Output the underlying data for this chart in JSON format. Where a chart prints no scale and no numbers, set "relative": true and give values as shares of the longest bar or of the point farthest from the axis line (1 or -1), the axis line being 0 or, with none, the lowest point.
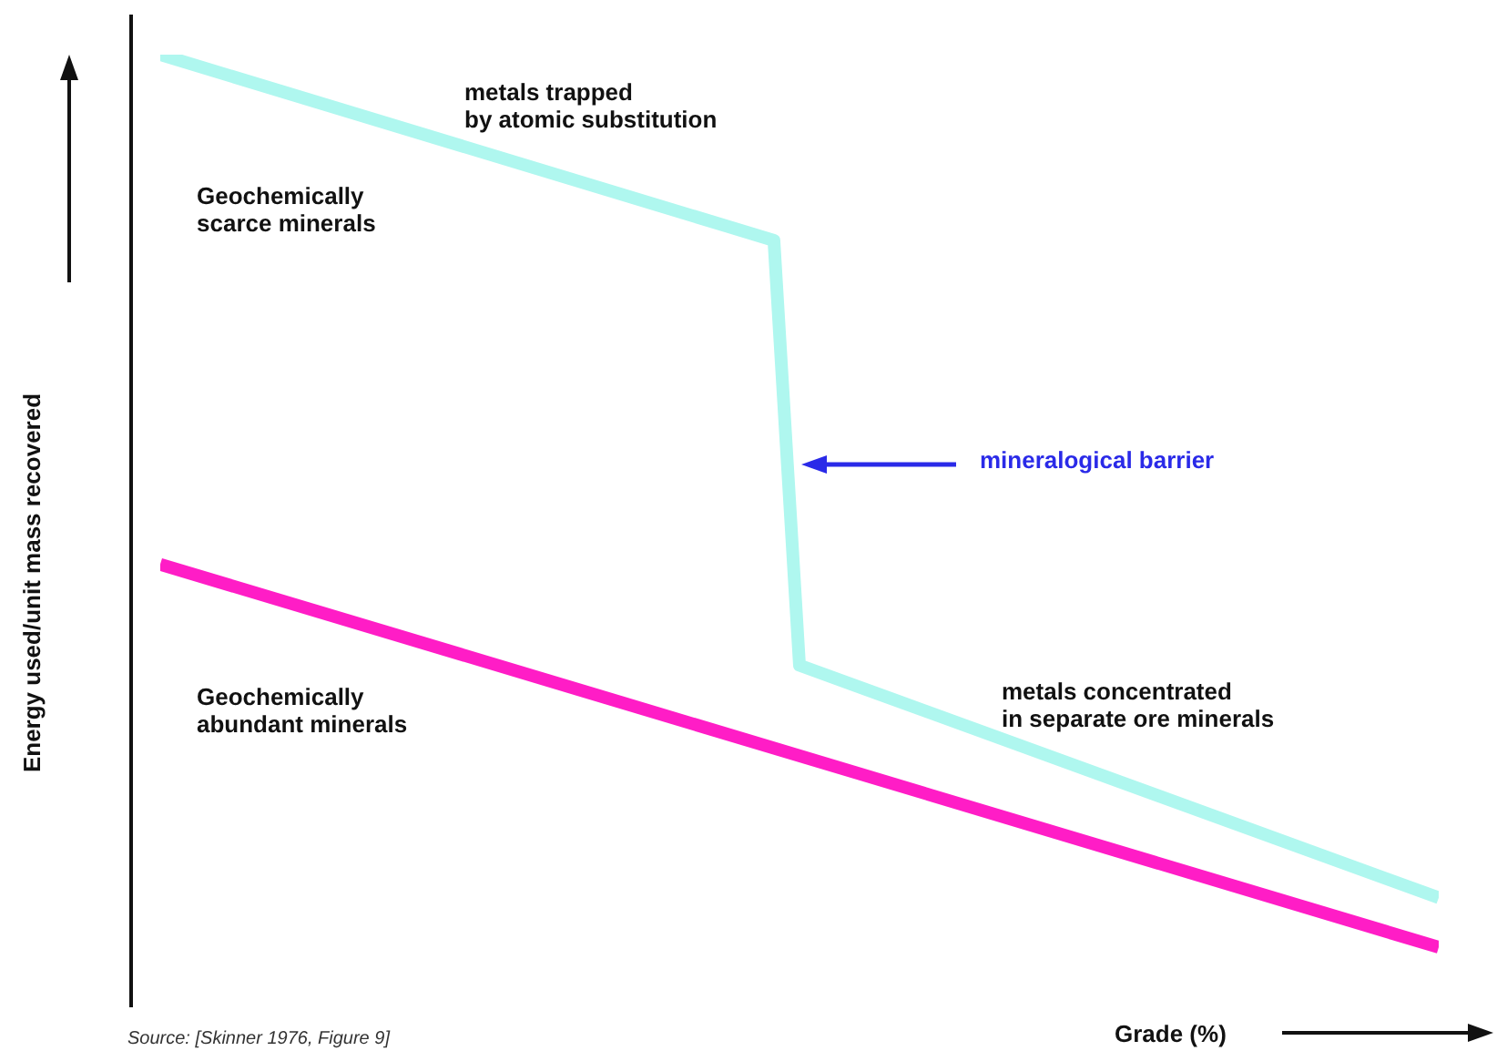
{
  "chart_data": {
    "type": "line",
    "relative": true,
    "xlabel": "Grade (%)",
    "ylabel": "Energy used/unit mass recovered",
    "categories": [
      null,
      null,
      null,
      null,
      null,
      null,
      null,
      null,
      null,
      null,
      null,
      null,
      null,
      null,
      null,
      null,
      null,
      null,
      null,
      null,
      null,
      null,
      null,
      null,
      null,
      null,
      null,
      null,
      null,
      null,
      null,
      null,
      null,
      null,
      null,
      null,
      null,
      null,
      null,
      null,
      null,
      null,
      null,
      null,
      null,
      null,
      null,
      null,
      null,
      null,
      null
    ],
    "series": [
      {
        "color": "#aff7ef",
        "values": [
          1,
          null,
          null,
          null,
          null,
          null,
          null,
          null,
          null,
          null,
          null,
          null,
          null,
          null,
          null,
          null,
          null,
          null,
          null,
          null,
          null,
          null,
          null,
          null,
          0.805,
          0.359,
          null,
          null,
          null,
          null,
          null,
          null,
          null,
          null,
          null,
          null,
          null,
          null,
          null,
          null,
          null,
          null,
          null,
          null,
          null,
          null,
          null,
          null,
          null,
          null,
          0.115
        ]
      },
      {
        "color": "#ff1dc6",
        "values": [
          0.465,
          null,
          null,
          null,
          null,
          null,
          null,
          null,
          null,
          null,
          null,
          null,
          null,
          null,
          null,
          null,
          null,
          null,
          null,
          null,
          null,
          null,
          null,
          null,
          null,
          null,
          null,
          null,
          null,
          null,
          null,
          null,
          null,
          null,
          null,
          null,
          null,
          null,
          null,
          null,
          null,
          null,
          null,
          null,
          null,
          null,
          null,
          null,
          null,
          null,
          0.063
        ]
      }
    ],
    "annotations": [
      "metals trapped\nby atomic substitution",
      "Geochemically\nscarce minerals",
      "mineralogical barrier",
      "metals concentrated\nin separate ore minerals",
      "Geochemically\nabundant minerals",
      "Source: [Skinner 1976, Figure 9]"
    ]
  }
}
